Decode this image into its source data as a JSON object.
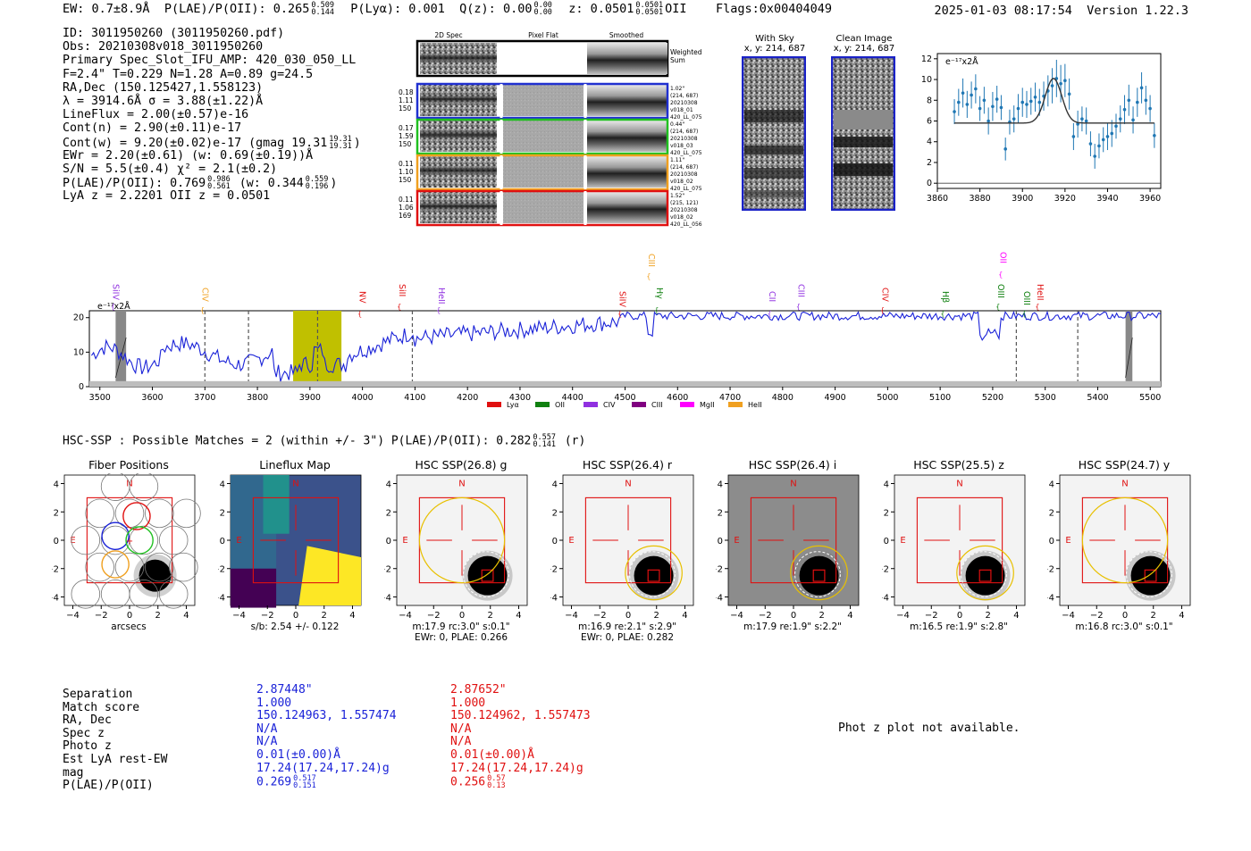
{
  "header": {
    "ew": "EW: 0.7±8.9Å",
    "plae_label": "P(LAE)/P(OII): 0.265",
    "plae_hi": "0.509",
    "plae_lo": "0.144",
    "plya": "P(Lyα): 0.001",
    "qz_label": "Q(z): 0.00",
    "qz_hi": "0.00",
    "qz_lo": "0.00",
    "z_label": "z: 0.0501",
    "z_hi": "0.0501",
    "z_lo": "0.0501",
    "z_line": "OII",
    "flags": "Flags:0x00404049",
    "timestamp": "2025-01-03 08:17:54",
    "version": "Version 1.22.3"
  },
  "info": {
    "id": "ID: 3011950260 (3011950260.pdf)",
    "obs": "Obs: 20210308v018_3011950260",
    "primary": "Primary Spec_Slot_IFU_AMP: 420_030_050_LL",
    "fit": "F=2.4\"  T=0.229  N=1.28  A=0.89  g=24.5",
    "radec": "RA,Dec (150.125427,1.558123)",
    "lambda": "λ = 3914.6Å   σ = 3.88(±1.22)Å",
    "lineflux": "LineFlux = 2.00(±0.57)e-16",
    "contn": "Cont(n) = 2.90(±0.11)e-17",
    "contw_a": "Cont(w) = 9.20(±0.02)e-17 (gmag 19.31",
    "contw_hi": "19.31",
    "contw_lo": "19.31",
    "contw_b": ")",
    "ewr": "EWr = 2.20(±0.61) (w: 0.69(±0.19))Å",
    "sn": "S/N = 5.5(±0.4)  χ² = 2.1(±0.2)",
    "plae_a": "P(LAE)/P(OII): 0.769",
    "plae_hi": "0.986",
    "plae_lo": "0.561",
    "plae_b": " (w: 0.344",
    "plae_w_hi": "0.559",
    "plae_w_lo": "0.196",
    "plae_c": ")",
    "lyaz": "LyA z = 2.2201   OII z = 0.0501"
  },
  "cutouts": {
    "col_2d": "2D Spec",
    "col_flat": "Pixel Flat",
    "col_smooth": "Smoothed",
    "weighted": "Weighted",
    "weighted2": "Sum",
    "rows": [
      {
        "v1": "0.18",
        "v2": "1.11",
        "v3": "150",
        "r1": "1.02\"",
        "r2": "(214, 687)",
        "r3": "20210308",
        "r4": "v018_01",
        "r5": "420_LL_075",
        "color": "#2030d0"
      },
      {
        "v1": "0.17",
        "v2": "1.59",
        "v3": "150",
        "r1": "0.44\"",
        "r2": "(214, 687)",
        "r3": "20210308",
        "r4": "v018_03",
        "r5": "420_LL_075",
        "color": "#20c020"
      },
      {
        "v1": "0.11",
        "v2": "1.10",
        "v3": "150",
        "r1": "1.11\"",
        "r2": "(214, 687)",
        "r3": "20210308",
        "r4": "v018_02",
        "r5": "420_LL_075",
        "color": "#f0a020"
      },
      {
        "v1": "0.11",
        "v2": "1.06",
        "v3": "169",
        "r1": "1.52\"",
        "r2": "(215, 121)",
        "r3": "20210308",
        "r4": "v018_02",
        "r5": "420_LL_056",
        "color": "#e01010"
      }
    ]
  },
  "sky": {
    "with_sky": "With Sky",
    "with_sky_xy": "x, y: 214, 687",
    "clean": "Clean Image",
    "clean_xy": "x, y: 214, 687"
  },
  "zoom_chart": {
    "ylabel": "e⁻¹⁷x2Å",
    "xticks": [
      "3860",
      "3880",
      "3900",
      "3920",
      "3940",
      "3960"
    ],
    "yticks": [
      "0",
      "2",
      "4",
      "6",
      "8",
      "10",
      "12"
    ]
  },
  "colors": {
    "lya": "#e01010",
    "oii": "#108010",
    "civ": "#9030e0",
    "ciii": "#800080",
    "mgii": "#ff00ff",
    "heii": "#f0a020",
    "spectrum": "#1a22d8",
    "highlight": "#c0c000",
    "stamp_border": "#1a22c8"
  },
  "chart_data": [
    {
      "type": "scatter",
      "chart": "zoom_spectrum",
      "xlabel": "",
      "ylabel": "e⁻¹⁷x2Å",
      "xlim": [
        3860,
        3965
      ],
      "ylim": [
        -0.5,
        12.5
      ],
      "points": {
        "x": [
          3868,
          3870,
          3872,
          3874,
          3876,
          3878,
          3880,
          3882,
          3884,
          3886,
          3888,
          3890,
          3892,
          3894,
          3896,
          3898,
          3900,
          3902,
          3904,
          3906,
          3908,
          3910,
          3912,
          3914,
          3916,
          3918,
          3920,
          3922,
          3924,
          3926,
          3928,
          3930,
          3932,
          3934,
          3936,
          3938,
          3940,
          3942,
          3944,
          3946,
          3948,
          3950,
          3952,
          3954,
          3956,
          3958,
          3960,
          3962
        ],
        "y": [
          6.9,
          7.8,
          8.7,
          7.6,
          8.5,
          9.1,
          7.2,
          8.0,
          6.0,
          7.4,
          8.1,
          7.3,
          3.3,
          5.9,
          6.2,
          7.2,
          7.8,
          7.6,
          7.9,
          8.3,
          7.8,
          8.4,
          8.9,
          9.4,
          10.1,
          9.6,
          9.9,
          8.6,
          4.5,
          5.7,
          6.2,
          6.0,
          3.8,
          2.6,
          3.6,
          4.2,
          4.5,
          4.8,
          5.5,
          6.2,
          7.1,
          8.0,
          6.1,
          7.8,
          9.2,
          8.0,
          7.2,
          4.6
        ],
        "err": [
          1.2,
          1.3,
          1.4,
          1.3,
          1.3,
          1.4,
          1.2,
          1.3,
          1.3,
          1.4,
          1.3,
          1.2,
          1.1,
          1.2,
          1.3,
          1.4,
          1.4,
          1.3,
          1.3,
          1.4,
          1.3,
          1.4,
          1.5,
          1.7,
          1.8,
          1.8,
          1.6,
          1.5,
          1.3,
          1.3,
          1.2,
          1.3,
          1.2,
          1.2,
          1.2,
          1.2,
          1.3,
          1.3,
          1.2,
          1.3,
          1.4,
          1.5,
          1.3,
          1.4,
          1.5,
          1.4,
          1.3,
          1.2
        ]
      },
      "fit": {
        "continuum": 5.8,
        "center": 3914.6,
        "sigma": 3.88,
        "peak": 10.1
      },
      "xticks": [
        3860,
        3880,
        3900,
        3920,
        3940,
        3960
      ],
      "yticks": [
        0,
        2,
        4,
        6,
        8,
        10,
        12
      ]
    },
    {
      "type": "line",
      "chart": "full_spectrum",
      "ylabel": "e⁻¹⁷x2Å",
      "xlim": [
        3480,
        5520
      ],
      "ylim": [
        0,
        22
      ],
      "xticks": [
        3500,
        3600,
        3700,
        3800,
        3900,
        4000,
        4100,
        4200,
        4300,
        4400,
        4500,
        4600,
        4700,
        4800,
        4900,
        5000,
        5100,
        5200,
        5300,
        5400,
        5500
      ],
      "yticks": [
        0,
        10,
        20
      ],
      "highlight_band": [
        3868,
        3960
      ],
      "masked_bands": [
        [
          3530,
          3550
        ],
        [
          5453,
          5466
        ]
      ],
      "dashed_lines": [
        3700,
        3783,
        3914.6,
        4095,
        5245,
        5362
      ],
      "line_labels": [
        {
          "name": "SiIV",
          "x": 3525,
          "color": "civ"
        },
        {
          "name": "CIV",
          "x": 3695,
          "color": "heii"
        },
        {
          "name": "NV",
          "x": 3995,
          "color": "lya"
        },
        {
          "name": "SiII",
          "x": 4070,
          "color": "lya"
        },
        {
          "name": "HeII",
          "x": 4145,
          "color": "civ"
        },
        {
          "name": "SiIV",
          "x": 4490,
          "color": "lya"
        },
        {
          "name": "CIII",
          "x": 4545,
          "color": "heii"
        },
        {
          "name": "Hγ",
          "x": 4560,
          "color": "oii"
        },
        {
          "name": "CII",
          "x": 4775,
          "color": "civ"
        },
        {
          "name": "CIII",
          "x": 4830,
          "color": "civ"
        },
        {
          "name": "CIV",
          "x": 4990,
          "color": "lya"
        },
        {
          "name": "Hβ",
          "x": 5105,
          "color": "oii"
        },
        {
          "name": "OIII",
          "x": 5210,
          "color": "oii"
        },
        {
          "name": "OII",
          "x": 5215,
          "color": "mgii"
        },
        {
          "name": "OIII",
          "x": 5260,
          "color": "oii"
        },
        {
          "name": "HeII",
          "x": 5285,
          "color": "lya"
        }
      ],
      "legend": [
        {
          "name": "Lyα",
          "color": "lya"
        },
        {
          "name": "OII",
          "color": "oii"
        },
        {
          "name": "CIV",
          "color": "civ"
        },
        {
          "name": "CIII",
          "color": "ciii"
        },
        {
          "name": "MgII",
          "color": "mgii"
        },
        {
          "name": "HeII",
          "color": "heii"
        }
      ],
      "legend_position": "bottom-center"
    }
  ],
  "hsc": {
    "title_a": "HSC-SSP : Possible Matches = 2 (within +/- 3\")  P(LAE)/P(OII): 0.282",
    "title_hi": "0.557",
    "title_lo": "0.141",
    "title_b": "(r)",
    "panels": [
      {
        "title": "Fiber Positions",
        "cap1": "arcsecs",
        "cap2": ""
      },
      {
        "title": "Lineflux Map",
        "cap1": "s/b: 2.54 +/- 0.122",
        "cap2": ""
      },
      {
        "title": "HSC SSP(26.8) g",
        "cap1": "m:17.9 rc:3.0\"  s:0.1\"",
        "cap2": "EWr: 0, PLAE: 0.266"
      },
      {
        "title": "HSC SSP(26.4) r",
        "cap1": "m:16.9  re:2.1\"  s:2.9\"",
        "cap2": "EWr: 0, PLAE: 0.282"
      },
      {
        "title": "HSC SSP(26.4) i",
        "cap1": "m:17.9  re:1.9\"  s:2.2\"",
        "cap2": ""
      },
      {
        "title": "HSC SSP(25.5) z",
        "cap1": "m:16.5  re:1.9\"  s:2.8\"",
        "cap2": ""
      },
      {
        "title": "HSC SSP(24.7) y",
        "cap1": "m:16.8 rc:3.0\"  s:0.1\"",
        "cap2": ""
      }
    ],
    "ticks": [
      "−4",
      "−2",
      "0",
      "2",
      "4"
    ],
    "north": "N",
    "east": "E"
  },
  "match": {
    "labels": [
      "Separation",
      "Match score",
      "RA, Dec",
      "Spec z",
      "Photo z",
      "Est LyA rest-EW",
      "mag",
      "P(LAE)/P(OII)"
    ],
    "col1": [
      "2.87448\"",
      "1.000",
      "150.124963, 1.557474",
      "N/A",
      "N/A",
      "0.01(±0.00)Å",
      "17.24(17.24,17.24)g"
    ],
    "col1_plae": "0.269",
    "col1_hi": "0.517",
    "col1_lo": "0.151",
    "col2": [
      "2.87652\"",
      "1.000",
      "150.124962, 1.557473",
      "N/A",
      "N/A",
      "0.01(±0.00)Å",
      "17.24(17.24,17.24)g"
    ],
    "col2_plae": "0.256",
    "col2_hi": "0.57",
    "col2_lo": "0.13",
    "photz": "Phot z plot not available."
  }
}
